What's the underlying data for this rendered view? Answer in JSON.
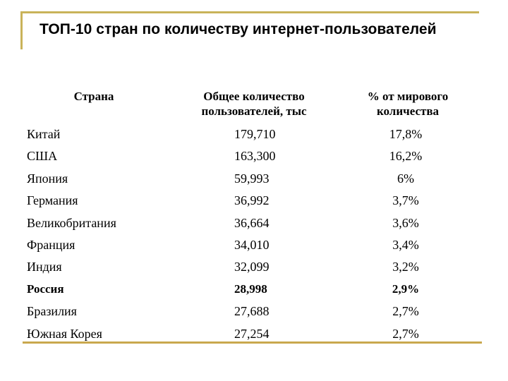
{
  "title": "ТОП-10 стран по количеству интернет-пользователей",
  "colors": {
    "frame": "#c9b35a",
    "bottom_rule": "#c9a84e",
    "text": "#000000"
  },
  "table": {
    "headers": [
      "Страна",
      "Общее количество пользователей, тыс",
      "% от мирового количества"
    ],
    "header_lines": {
      "col2": [
        "Общее количество",
        "пользователей, тыс"
      ],
      "col3": [
        "% от мирового",
        "количества"
      ]
    },
    "rows": [
      {
        "country": "Китай",
        "users": "179,710",
        "pct": "17,8%",
        "bold": false
      },
      {
        "country": "США",
        "users": "163,300",
        "pct": "16,2%",
        "bold": false
      },
      {
        "country": "Япония",
        "users": "59,993",
        "pct": "6%",
        "bold": false
      },
      {
        "country": "Германия",
        "users": "36,992",
        "pct": "3,7%",
        "bold": false
      },
      {
        "country": "Великобритания",
        "users": "36,664",
        "pct": "3,6%",
        "bold": false
      },
      {
        "country": "Франция",
        "users": "34,010",
        "pct": "3,4%",
        "bold": false
      },
      {
        "country": "Индия",
        "users": "32,099",
        "pct": "3,2%",
        "bold": false
      },
      {
        "country": "Россия",
        "users": "28,998",
        "pct": "2,9%",
        "bold": true
      },
      {
        "country": "Бразилия",
        "users": "27,688",
        "pct": "2,7%",
        "bold": false
      },
      {
        "country": "Южная Корея",
        "users": "27,254",
        "pct": "2,7%",
        "bold": false
      }
    ]
  }
}
